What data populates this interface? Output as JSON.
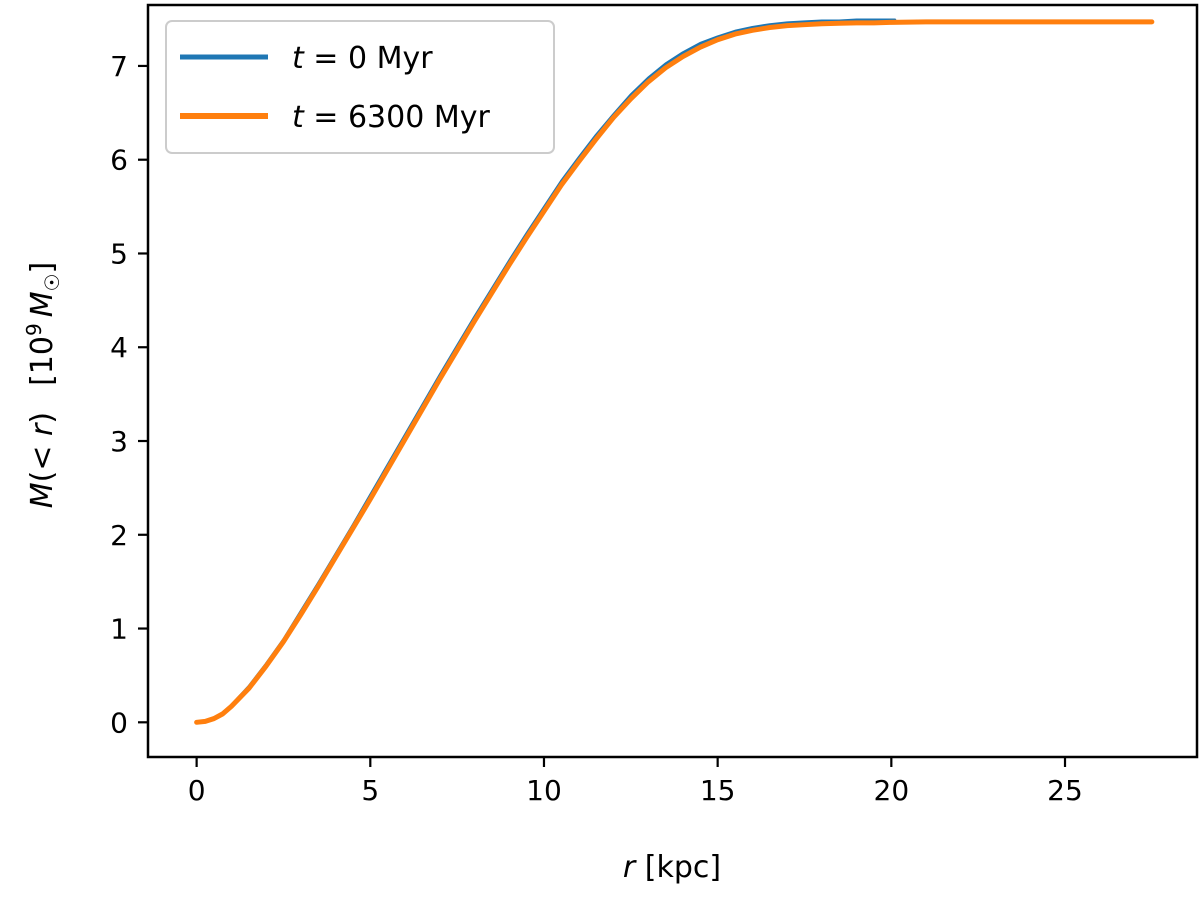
{
  "chart_data": {
    "type": "line",
    "xlabel": "r [kpc]",
    "ylabel": "M(<r)   [10⁹ M☉]",
    "xlim": [
      -1.4,
      28.8
    ],
    "ylim": [
      -0.37,
      7.65
    ],
    "xticks": [
      0,
      5,
      10,
      15,
      20,
      25
    ],
    "yticks": [
      0,
      1,
      2,
      3,
      4,
      5,
      6,
      7
    ],
    "grid": false,
    "legend_position": "top-left",
    "series": [
      {
        "name": "t = 0 Myr",
        "color": "#1f77b4",
        "line_width": 3,
        "x": [
          0,
          0.25,
          0.5,
          0.75,
          1.0,
          1.5,
          2.0,
          2.5,
          3,
          3.5,
          4,
          4.5,
          5,
          5.5,
          6,
          6.5,
          7,
          7.5,
          8,
          8.5,
          9,
          9.5,
          10,
          10.5,
          11,
          11.5,
          12,
          12.5,
          13,
          13.5,
          14,
          14.5,
          15,
          15.5,
          16,
          16.5,
          17,
          17.5,
          18,
          18.5,
          19,
          19.5,
          20.1
        ],
        "y": [
          0.0,
          0.01,
          0.04,
          0.1,
          0.18,
          0.38,
          0.62,
          0.88,
          1.18,
          1.48,
          1.79,
          2.1,
          2.42,
          2.74,
          3.06,
          3.38,
          3.7,
          4.01,
          4.32,
          4.62,
          4.92,
          5.21,
          5.49,
          5.77,
          6.02,
          6.26,
          6.48,
          6.69,
          6.87,
          7.02,
          7.14,
          7.24,
          7.31,
          7.37,
          7.41,
          7.44,
          7.46,
          7.47,
          7.48,
          7.48,
          7.49,
          7.49,
          7.49
        ]
      },
      {
        "name": "t = 6300 Myr",
        "color": "#ff7f0e",
        "line_width": 5,
        "x": [
          0,
          0.25,
          0.5,
          0.75,
          1.0,
          1.5,
          2.0,
          2.5,
          3,
          3.5,
          4,
          4.5,
          5,
          5.5,
          6,
          6.5,
          7,
          7.5,
          8,
          8.5,
          9,
          9.5,
          10,
          10.5,
          11,
          11.5,
          12,
          12.5,
          13,
          13.5,
          14,
          14.5,
          15,
          15.5,
          16,
          16.5,
          17,
          17.5,
          18,
          18.5,
          19,
          19.5,
          20,
          21,
          22,
          23,
          24,
          25,
          26,
          27,
          27.5
        ],
        "y": [
          0.0,
          0.01,
          0.04,
          0.09,
          0.17,
          0.36,
          0.6,
          0.86,
          1.15,
          1.45,
          1.76,
          2.07,
          2.38,
          2.7,
          3.02,
          3.34,
          3.66,
          3.97,
          4.28,
          4.58,
          4.88,
          5.17,
          5.45,
          5.73,
          5.98,
          6.22,
          6.45,
          6.65,
          6.83,
          6.98,
          7.1,
          7.2,
          7.28,
          7.34,
          7.38,
          7.41,
          7.43,
          7.44,
          7.45,
          7.455,
          7.46,
          7.46,
          7.465,
          7.47,
          7.47,
          7.47,
          7.47,
          7.47,
          7.47,
          7.47,
          7.47
        ]
      }
    ]
  }
}
